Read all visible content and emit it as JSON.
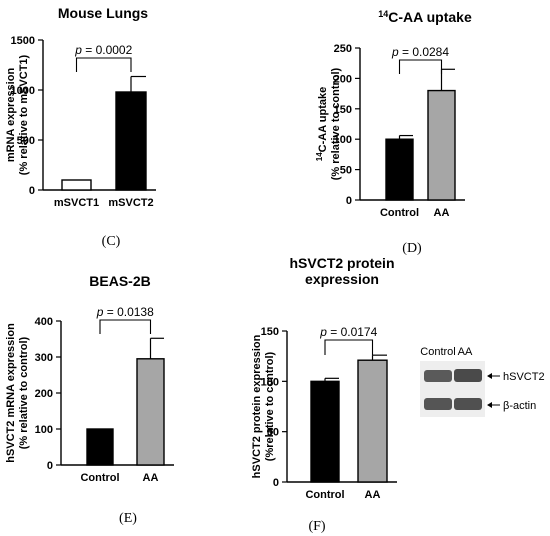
{
  "chart_data": [
    {
      "type": "bar",
      "panel_label": "(C)",
      "title": "Mouse Lungs",
      "ylabel_lines": [
        "mRNA expression",
        "(% relative to mSVCT1)"
      ],
      "categories": [
        "mSVCT1",
        "mSVCT2"
      ],
      "values": [
        100,
        980
      ],
      "errors": [
        0,
        155
      ],
      "bar_colors": [
        "#ffffff",
        "#000000"
      ],
      "ylim": [
        0,
        1500
      ],
      "yticks": [
        0,
        500,
        1000,
        1500
      ],
      "p_text": "p = 0.0002"
    },
    {
      "type": "bar",
      "panel_label": "(D)",
      "title_sup": "14",
      "title": "C-AA uptake",
      "ylabel_sup": "14",
      "ylabel_lines": [
        "C-AA uptake",
        "(% relative to control)"
      ],
      "categories": [
        "Control",
        "AA"
      ],
      "values": [
        100,
        180
      ],
      "errors": [
        6,
        35
      ],
      "bar_colors": [
        "#000000",
        "#a6a6a6"
      ],
      "ylim": [
        0,
        250
      ],
      "yticks": [
        0,
        50,
        100,
        150,
        200,
        250
      ],
      "p_text": "p = 0.0284"
    },
    {
      "type": "bar",
      "panel_label": "(E)",
      "title": "BEAS-2B",
      "ylabel_lines": [
        "hSVCT2 mRNA expression",
        "(% relative to control)"
      ],
      "categories": [
        "Control",
        "AA"
      ],
      "values": [
        100,
        295
      ],
      "errors": [
        0,
        57
      ],
      "bar_colors": [
        "#000000",
        "#a6a6a6"
      ],
      "ylim": [
        0,
        400
      ],
      "yticks": [
        0,
        100,
        200,
        300,
        400
      ],
      "p_text": "p = 0.0138"
    },
    {
      "type": "bar",
      "panel_label": "(F)",
      "title_lines": [
        "hSVCT2 protein",
        "expression"
      ],
      "ylabel_lines": [
        "hSVCT2 protein expression",
        "(%relative to control)"
      ],
      "categories": [
        "Control",
        "AA"
      ],
      "values": [
        100,
        121
      ],
      "errors": [
        3,
        5
      ],
      "bar_colors": [
        "#000000",
        "#a6a6a6"
      ],
      "ylim": [
        0,
        150
      ],
      "yticks": [
        0,
        50,
        100,
        150
      ],
      "p_text": "p = 0.0174",
      "blot": {
        "lane_labels": [
          "Control",
          "AA"
        ],
        "band_labels": [
          "hSVCT2",
          "β-actin"
        ]
      }
    }
  ]
}
